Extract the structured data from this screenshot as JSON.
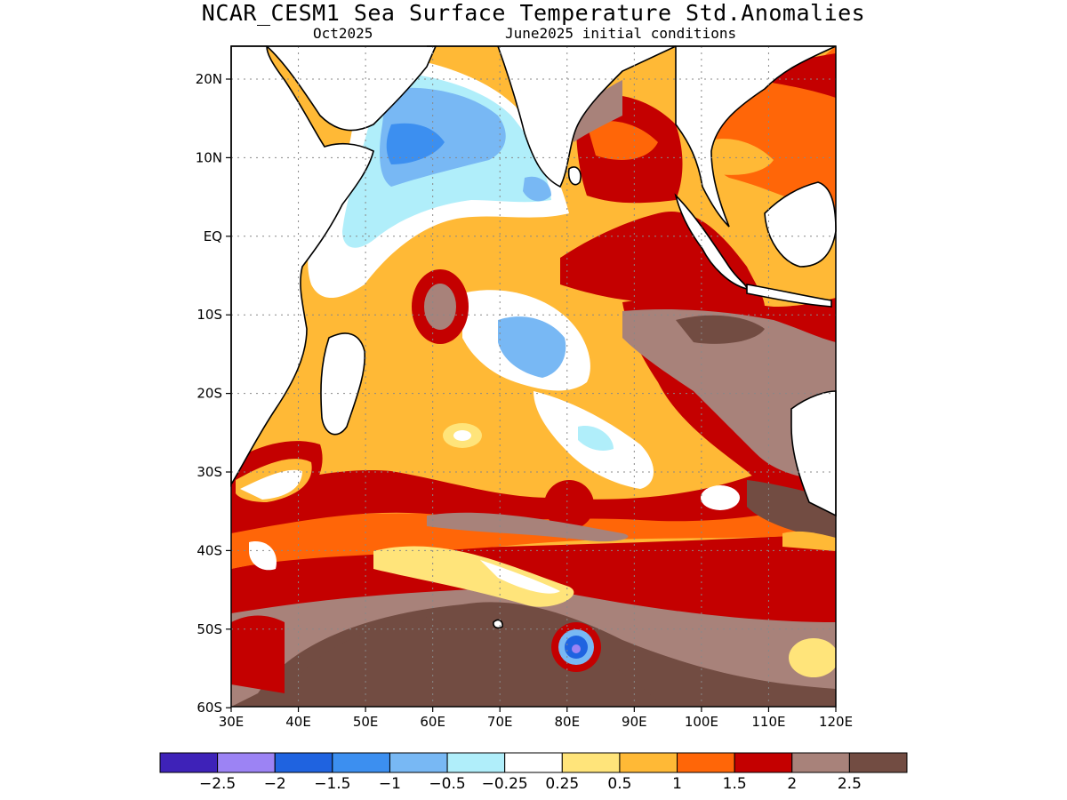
{
  "header": {
    "title": "NCAR_CESM1 Sea Surface Temperature Std.Anomalies",
    "month": "Oct2025",
    "init": "June2025 initial conditions"
  },
  "axes": {
    "lat_ticks": [
      "20N",
      "10N",
      "EQ",
      "10S",
      "20S",
      "30S",
      "40S",
      "50S",
      "60S"
    ],
    "lon_ticks": [
      "30E",
      "40E",
      "50E",
      "60E",
      "70E",
      "80E",
      "90E",
      "100E",
      "110E",
      "120E"
    ]
  },
  "colorbar": {
    "colors": [
      "#3e22b8",
      "#9c83f4",
      "#1f63e0",
      "#3c8ff0",
      "#78b8f4",
      "#b0eefa",
      "#ffffff",
      "#ffe47a",
      "#ffb936",
      "#ff6608",
      "#c40000",
      "#a8827a",
      "#724c42"
    ],
    "labels": [
      "−2.5",
      "−2",
      "−1.5",
      "−1",
      "−0.5",
      "−0.25",
      "0.25",
      "0.5",
      "1",
      "1.5",
      "2",
      "2.5"
    ]
  }
}
